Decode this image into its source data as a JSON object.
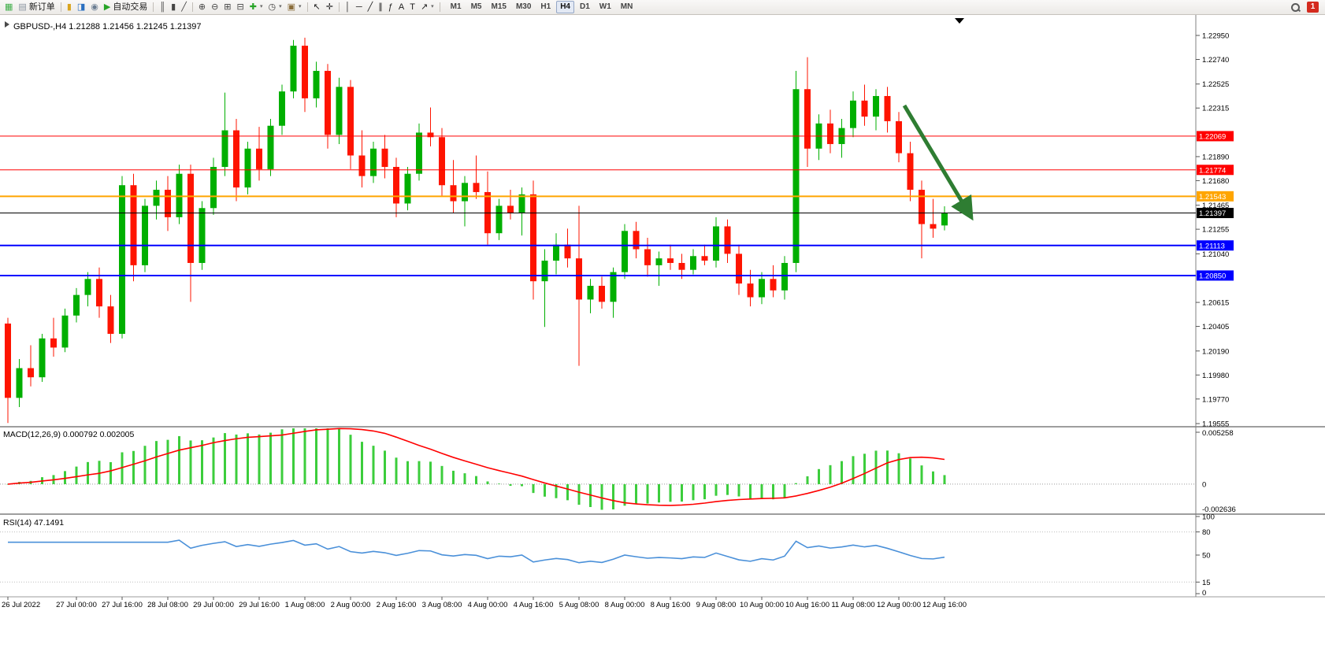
{
  "toolbar": {
    "items": [
      {
        "name": "new-chart-button",
        "icon": "candlestick-chart-icon",
        "glyph": "▦",
        "color": "#3fae49"
      },
      {
        "name": "new-order-button",
        "icon": "new-order-icon",
        "glyph": "▤",
        "color": "#8a93a0",
        "label": "新订单"
      },
      {
        "name": "sep"
      },
      {
        "name": "market-watch-button",
        "icon": "market-watch-icon",
        "glyph": "▮",
        "color": "#d9a41e"
      },
      {
        "name": "data-window-button",
        "icon": "data-window-icon",
        "glyph": "◨",
        "color": "#2a6fc0"
      },
      {
        "name": "history-center-button",
        "icon": "history-center-icon",
        "glyph": "◉",
        "color": "#6b7d92"
      },
      {
        "name": "autotrading-button",
        "icon": "autotrading-play-icon",
        "glyph": "▶",
        "color": "#27a427",
        "label": "自动交易"
      },
      {
        "name": "sep"
      },
      {
        "name": "bar-chart-type-button",
        "icon": "ohlc-bars-icon",
        "glyph": "║",
        "color": "#454545"
      },
      {
        "name": "candlestick-type-button",
        "icon": "candles-icon",
        "glyph": "▮",
        "color": "#454545"
      },
      {
        "name": "line-chart-type-button",
        "icon": "line-chart-icon",
        "glyph": "╱",
        "color": "#454545"
      },
      {
        "name": "sep"
      },
      {
        "name": "zoom-in-button",
        "icon": "zoom-in-icon",
        "glyph": "⊕",
        "color": "#454545"
      },
      {
        "name": "zoom-out-button",
        "icon": "zoom-out-icon",
        "glyph": "⊖",
        "color": "#454545"
      },
      {
        "name": "tile-windows-button",
        "icon": "tile-windows-icon",
        "glyph": "⊞",
        "color": "#454545"
      },
      {
        "name": "auto-arrange-button",
        "icon": "arrange-windows-icon",
        "glyph": "⊟",
        "color": "#454545"
      },
      {
        "name": "indicators-button",
        "icon": "add-indicator-icon",
        "glyph": "✚",
        "color": "#27a427",
        "dropdown": true
      },
      {
        "name": "periods-button",
        "icon": "clock-icon",
        "glyph": "◷",
        "color": "#454545",
        "dropdown": true
      },
      {
        "name": "templates-button",
        "icon": "template-icon",
        "glyph": "▣",
        "color": "#8a6d3b",
        "dropdown": true
      },
      {
        "name": "sep"
      },
      {
        "name": "cursor-button",
        "icon": "cursor-icon",
        "glyph": "↖",
        "color": "#1c1c1c"
      },
      {
        "name": "crosshair-button",
        "icon": "crosshair-icon",
        "glyph": "✛",
        "color": "#1c1c1c"
      },
      {
        "name": "sep"
      },
      {
        "name": "vertical-line-button",
        "icon": "vertical-line-icon",
        "glyph": "│",
        "color": "#1c1c1c"
      },
      {
        "name": "horizontal-line-button",
        "icon": "horizontal-line-icon",
        "glyph": "─",
        "color": "#1c1c1c"
      },
      {
        "name": "trendline-button",
        "icon": "trendline-icon",
        "glyph": "╱",
        "color": "#1c1c1c"
      },
      {
        "name": "channel-button",
        "icon": "equidistant-channel-icon",
        "glyph": "∥",
        "color": "#1c1c1c"
      },
      {
        "name": "fibonacci-button",
        "icon": "fibonacci-icon",
        "glyph": "ƒ",
        "color": "#1c1c1c"
      },
      {
        "name": "text-button",
        "icon": "text-icon",
        "glyph": "A",
        "color": "#1c1c1c"
      },
      {
        "name": "text-label-button",
        "icon": "text-label-icon",
        "glyph": "T",
        "color": "#1c1c1c"
      },
      {
        "name": "arrows-button",
        "icon": "arrow-objects-icon",
        "glyph": "↗",
        "color": "#1c1c1c",
        "dropdown": true
      },
      {
        "name": "sep"
      }
    ],
    "timeframes": [
      {
        "label": "M1"
      },
      {
        "label": "M5"
      },
      {
        "label": "M15"
      },
      {
        "label": "M30"
      },
      {
        "label": "H1"
      },
      {
        "label": "H4",
        "active": true
      },
      {
        "label": "D1"
      },
      {
        "label": "W1"
      },
      {
        "label": "MN"
      }
    ],
    "notification_count": "1"
  },
  "chart_data": {
    "type": "candlestick",
    "symbol": "GBPUSD-",
    "timeframe": "H4",
    "info_line": "GBPUSD-,H4  1.21288 1.21456 1.21245 1.21397",
    "ohlc_current": {
      "open": "1.21288",
      "high": "1.21456",
      "low": "1.21245",
      "close": "1.21397"
    },
    "ylim": [
      1.19555,
      1.2295
    ],
    "colors": {
      "bull": "#00AF00",
      "bear": "#FE1400",
      "macd_hist": "#3CCD3C",
      "macd_signal": "#FF0000",
      "rsi_line": "#4A90D9",
      "arrow": "#2E7D32",
      "line_red": "#FF0000",
      "line_orange": "#FFA500",
      "line_blue": "#0000FF",
      "line_black": "#000000"
    },
    "price_ticks": [
      "1.22950",
      "1.22740",
      "1.22525",
      "1.22315",
      "1.21890",
      "1.21680",
      "1.21465",
      "1.21255",
      "1.21040",
      "1.20615",
      "1.20405",
      "1.20190",
      "1.19980",
      "1.19770",
      "1.19555"
    ],
    "hlines": [
      {
        "price": 1.22069,
        "label": "1.22069",
        "color": "#FF0000",
        "width": 1
      },
      {
        "price": 1.21774,
        "label": "1.21774",
        "color": "#FF0000",
        "width": 1
      },
      {
        "price": 1.21543,
        "label": "1.21543",
        "color": "#FFA500",
        "width": 2
      },
      {
        "price": 1.21397,
        "label": "1.21397",
        "color": "#000000",
        "width": 1
      },
      {
        "price": 1.21113,
        "label": "1.21113",
        "color": "#0000FF",
        "width": 2
      },
      {
        "price": 1.2085,
        "label": "1.20850",
        "color": "#0000FF",
        "width": 2
      }
    ],
    "candles": [
      [
        1.2043,
        1.2048,
        1.1956,
        1.1978
      ],
      [
        1.1978,
        1.2012,
        1.197,
        1.2004
      ],
      [
        1.2004,
        1.2024,
        1.1988,
        1.1996
      ],
      [
        1.1996,
        1.2034,
        1.1992,
        1.203
      ],
      [
        1.203,
        1.2048,
        1.2014,
        1.2022
      ],
      [
        1.2022,
        1.2056,
        1.2018,
        1.205
      ],
      [
        1.205,
        1.2074,
        1.2044,
        1.2068
      ],
      [
        1.2068,
        1.2088,
        1.2058,
        1.2082
      ],
      [
        1.2082,
        1.2092,
        1.2048,
        1.2058
      ],
      [
        1.2058,
        1.2068,
        1.2026,
        1.2034
      ],
      [
        1.2034,
        1.2172,
        1.203,
        1.2164
      ],
      [
        1.2164,
        1.2174,
        1.208,
        1.2094
      ],
      [
        1.2094,
        1.2152,
        1.2088,
        1.2146
      ],
      [
        1.2146,
        1.2168,
        1.2134,
        1.216
      ],
      [
        1.216,
        1.2172,
        1.2124,
        1.2136
      ],
      [
        1.2136,
        1.2182,
        1.213,
        1.2174
      ],
      [
        1.2174,
        1.2182,
        1.2062,
        1.2096
      ],
      [
        1.2096,
        1.215,
        1.209,
        1.2144
      ],
      [
        1.2144,
        1.2188,
        1.2138,
        1.218
      ],
      [
        1.218,
        1.2245,
        1.2172,
        1.2212
      ],
      [
        1.2212,
        1.2222,
        1.215,
        1.2162
      ],
      [
        1.2162,
        1.2202,
        1.2156,
        1.2196
      ],
      [
        1.2196,
        1.2215,
        1.2168,
        1.2178
      ],
      [
        1.2178,
        1.2222,
        1.2172,
        1.2216
      ],
      [
        1.2216,
        1.2252,
        1.2208,
        1.2246
      ],
      [
        1.2246,
        1.2291,
        1.224,
        1.2286
      ],
      [
        1.2286,
        1.2293,
        1.2228,
        1.224
      ],
      [
        1.224,
        1.2272,
        1.2232,
        1.2264
      ],
      [
        1.2264,
        1.227,
        1.2196,
        1.2208
      ],
      [
        1.2208,
        1.2258,
        1.22,
        1.225
      ],
      [
        1.225,
        1.2256,
        1.2178,
        1.219
      ],
      [
        1.219,
        1.2212,
        1.2162,
        1.2172
      ],
      [
        1.2172,
        1.2202,
        1.2166,
        1.2196
      ],
      [
        1.2196,
        1.2208,
        1.217,
        1.218
      ],
      [
        1.218,
        1.2188,
        1.2136,
        1.2148
      ],
      [
        1.2148,
        1.218,
        1.2142,
        1.2174
      ],
      [
        1.2174,
        1.2218,
        1.2168,
        1.221
      ],
      [
        1.221,
        1.2232,
        1.2198,
        1.2206
      ],
      [
        1.2206,
        1.2214,
        1.2154,
        1.2164
      ],
      [
        1.2164,
        1.2186,
        1.214,
        1.215
      ],
      [
        1.215,
        1.2172,
        1.2128,
        1.2166
      ],
      [
        1.2166,
        1.219,
        1.2152,
        1.2158
      ],
      [
        1.2158,
        1.2176,
        1.2112,
        1.2122
      ],
      [
        1.2122,
        1.2152,
        1.2116,
        1.2146
      ],
      [
        1.2146,
        1.216,
        1.2134,
        1.214
      ],
      [
        1.214,
        1.2162,
        1.212,
        1.2156
      ],
      [
        1.2156,
        1.2168,
        1.2064,
        1.208
      ],
      [
        1.208,
        1.2108,
        1.204,
        1.2098
      ],
      [
        1.2098,
        1.2122,
        1.2086,
        1.2112
      ],
      [
        1.2112,
        1.2126,
        1.2092,
        1.21
      ],
      [
        1.21,
        1.2146,
        1.2006,
        1.2064
      ],
      [
        1.2064,
        1.2082,
        1.2052,
        1.2076
      ],
      [
        1.2076,
        1.2084,
        1.2056,
        1.2062
      ],
      [
        1.2062,
        1.2092,
        1.2048,
        1.2088
      ],
      [
        1.2088,
        1.213,
        1.2082,
        1.2124
      ],
      [
        1.2124,
        1.2132,
        1.21,
        1.2108
      ],
      [
        1.2108,
        1.2118,
        1.2084,
        1.2094
      ],
      [
        1.2094,
        1.2106,
        1.2076,
        1.21
      ],
      [
        1.21,
        1.2112,
        1.209,
        1.2096
      ],
      [
        1.2096,
        1.2104,
        1.2082,
        1.209
      ],
      [
        1.209,
        1.2108,
        1.2086,
        1.2102
      ],
      [
        1.2102,
        1.2112,
        1.2094,
        1.2098
      ],
      [
        1.2098,
        1.2136,
        1.2092,
        1.2128
      ],
      [
        1.2128,
        1.2134,
        1.2096,
        1.2104
      ],
      [
        1.2104,
        1.2112,
        1.2068,
        1.2078
      ],
      [
        1.2078,
        1.209,
        1.2058,
        1.2066
      ],
      [
        1.2066,
        1.2088,
        1.206,
        1.2082
      ],
      [
        1.2082,
        1.2094,
        1.2066,
        1.2072
      ],
      [
        1.2072,
        1.2102,
        1.2064,
        1.2096
      ],
      [
        1.2096,
        1.2264,
        1.2088,
        1.2248
      ],
      [
        1.2248,
        1.2276,
        1.218,
        1.2196
      ],
      [
        1.2196,
        1.2226,
        1.2186,
        1.2218
      ],
      [
        1.2218,
        1.223,
        1.2192,
        1.22
      ],
      [
        1.22,
        1.2222,
        1.2188,
        1.2214
      ],
      [
        1.2214,
        1.2246,
        1.2206,
        1.2238
      ],
      [
        1.2238,
        1.2252,
        1.2216,
        1.2224
      ],
      [
        1.2224,
        1.2248,
        1.2212,
        1.2242
      ],
      [
        1.2242,
        1.225,
        1.221,
        1.222
      ],
      [
        1.222,
        1.2228,
        1.2184,
        1.2192
      ],
      [
        1.2192,
        1.2202,
        1.215,
        1.216
      ],
      [
        1.216,
        1.2168,
        1.21,
        1.213
      ],
      [
        1.213,
        1.2152,
        1.2118,
        1.2126
      ],
      [
        1.21288,
        1.21456,
        1.21245,
        1.21397
      ]
    ],
    "time_labels": [
      "26 Jul 2022",
      "27 Jul 00:00",
      "27 Jul 16:00",
      "28 Jul 08:00",
      "29 Jul 00:00",
      "29 Jul 16:00",
      "1 Aug 08:00",
      "2 Aug 00:00",
      "2 Aug 16:00",
      "3 Aug 08:00",
      "4 Aug 00:00",
      "4 Aug 16:00",
      "5 Aug 08:00",
      "8 Aug 00:00",
      "8 Aug 16:00",
      "9 Aug 08:00",
      "10 Aug 00:00",
      "10 Aug 16:00",
      "11 Aug 08:00",
      "12 Aug 00:00",
      "12 Aug 16:00"
    ],
    "macd": {
      "label": "MACD(12,26,9) 0.000792 0.002005",
      "params": [
        12,
        26,
        9
      ],
      "values_text": [
        "0.000792",
        "0.002005"
      ],
      "scale": {
        "max": "0.005258",
        "zero": "0",
        "min": "-0.002636"
      }
    },
    "rsi": {
      "label": "RSI(14) 47.1491",
      "period": 14,
      "value_text": "47.1491",
      "levels": [
        "100",
        "80",
        "50",
        "15",
        "0"
      ]
    }
  }
}
